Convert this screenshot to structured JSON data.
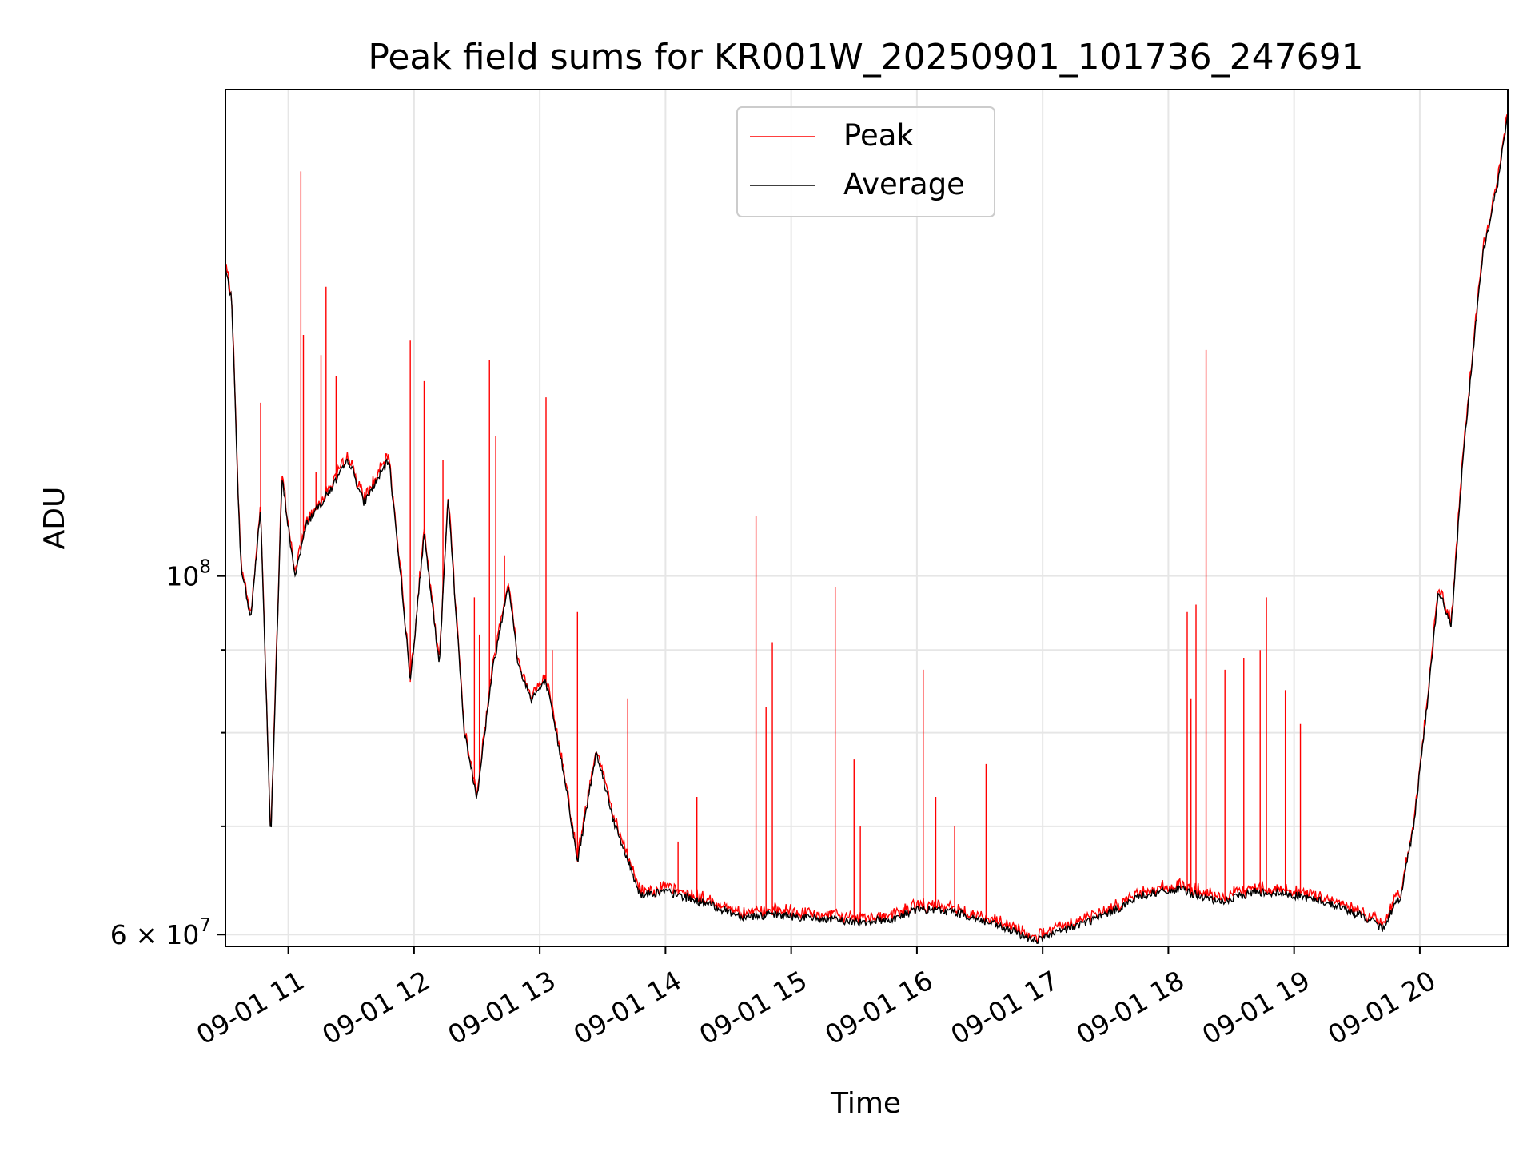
{
  "chart_data": {
    "type": "line",
    "title": "Peak field sums for KR001W_20250901_101736_247691",
    "xlabel": "Time",
    "ylabel": "ADU",
    "y_scale": "log",
    "x_range_hours": [
      10.5,
      20.7
    ],
    "ylim": [
      59000000,
      200000000
    ],
    "x_ticks": [
      {
        "value": 11,
        "label": "09-01 11"
      },
      {
        "value": 12,
        "label": "09-01 12"
      },
      {
        "value": 13,
        "label": "09-01 13"
      },
      {
        "value": 14,
        "label": "09-01 14"
      },
      {
        "value": 15,
        "label": "09-01 15"
      },
      {
        "value": 16,
        "label": "09-01 16"
      },
      {
        "value": 17,
        "label": "09-01 17"
      },
      {
        "value": 18,
        "label": "09-01 18"
      },
      {
        "value": 19,
        "label": "09-01 19"
      },
      {
        "value": 20,
        "label": "09-01 20"
      }
    ],
    "y_major_ticks": [
      {
        "value": 60000000,
        "label_base": "6 × 10",
        "label_exp": "7"
      },
      {
        "value": 100000000,
        "label_base": "10",
        "label_exp": "8"
      }
    ],
    "y_minor_ticks": [
      70000000,
      80000000,
      90000000
    ],
    "grid": true,
    "legend_position": "top-center",
    "series": [
      {
        "name": "Peak",
        "color": "#ff0000",
        "baseline": [
          [
            10.5,
            155000000
          ],
          [
            10.55,
            148000000
          ],
          [
            10.62,
            102000000
          ],
          [
            10.7,
            94000000
          ],
          [
            10.78,
            110000000
          ],
          [
            10.86,
            68500000
          ],
          [
            10.95,
            115000000
          ],
          [
            11.05,
            100000000
          ],
          [
            11.15,
            108000000
          ],
          [
            11.3,
            112000000
          ],
          [
            11.48,
            118000000
          ],
          [
            11.6,
            111000000
          ],
          [
            11.8,
            118000000
          ],
          [
            11.9,
            99000000
          ],
          [
            11.97,
            86000000
          ],
          [
            12.08,
            106000000
          ],
          [
            12.2,
            88000000
          ],
          [
            12.27,
            112000000
          ],
          [
            12.4,
            80000000
          ],
          [
            12.5,
            73000000
          ],
          [
            12.62,
            87000000
          ],
          [
            12.75,
            99000000
          ],
          [
            12.83,
            88000000
          ],
          [
            12.93,
            84000000
          ],
          [
            13.05,
            86000000
          ],
          [
            13.2,
            75000000
          ],
          [
            13.3,
            66500000
          ],
          [
            13.45,
            78000000
          ],
          [
            13.6,
            70000000
          ],
          [
            13.8,
            63500000
          ],
          [
            14.0,
            63800000
          ],
          [
            14.3,
            62800000
          ],
          [
            14.6,
            61600000
          ],
          [
            14.9,
            61700000
          ],
          [
            15.2,
            61400000
          ],
          [
            15.5,
            61100000
          ],
          [
            15.8,
            61300000
          ],
          [
            16.0,
            62200000
          ],
          [
            16.3,
            62000000
          ],
          [
            16.6,
            60900000
          ],
          [
            16.95,
            59500000
          ],
          [
            17.2,
            60500000
          ],
          [
            17.5,
            61700000
          ],
          [
            17.8,
            63500000
          ],
          [
            18.1,
            64000000
          ],
          [
            18.4,
            62800000
          ],
          [
            18.7,
            63800000
          ],
          [
            19.0,
            63500000
          ],
          [
            19.3,
            62700000
          ],
          [
            19.6,
            61300000
          ],
          [
            19.7,
            60500000
          ],
          [
            19.85,
            63500000
          ],
          [
            19.95,
            70000000
          ],
          [
            20.05,
            82000000
          ],
          [
            20.15,
            98000000
          ],
          [
            20.25,
            93000000
          ],
          [
            20.35,
            120000000
          ],
          [
            20.5,
            158000000
          ],
          [
            20.62,
            175000000
          ],
          [
            20.7,
            193000000
          ]
        ],
        "spikes": [
          [
            10.78,
            128000000
          ],
          [
            11.1,
            178000000
          ],
          [
            11.12,
            141000000
          ],
          [
            11.22,
            116000000
          ],
          [
            11.26,
            137000000
          ],
          [
            11.3,
            151000000
          ],
          [
            11.38,
            133000000
          ],
          [
            11.97,
            140000000
          ],
          [
            12.08,
            132000000
          ],
          [
            12.23,
            118000000
          ],
          [
            12.48,
            97000000
          ],
          [
            12.52,
            92000000
          ],
          [
            12.6,
            136000000
          ],
          [
            12.65,
            122000000
          ],
          [
            12.72,
            103000000
          ],
          [
            13.05,
            129000000
          ],
          [
            13.1,
            90000000
          ],
          [
            13.3,
            95000000
          ],
          [
            13.7,
            84000000
          ],
          [
            14.1,
            68500000
          ],
          [
            14.25,
            73000000
          ],
          [
            14.72,
            109000000
          ],
          [
            14.8,
            83000000
          ],
          [
            14.85,
            91000000
          ],
          [
            15.35,
            98500000
          ],
          [
            15.5,
            77000000
          ],
          [
            15.55,
            70000000
          ],
          [
            16.05,
            87500000
          ],
          [
            16.15,
            73000000
          ],
          [
            16.3,
            70000000
          ],
          [
            16.55,
            76500000
          ],
          [
            18.15,
            95000000
          ],
          [
            18.18,
            84000000
          ],
          [
            18.22,
            96000000
          ],
          [
            18.3,
            138000000
          ],
          [
            18.45,
            87500000
          ],
          [
            18.6,
            89000000
          ],
          [
            18.73,
            90000000
          ],
          [
            18.78,
            97000000
          ],
          [
            18.93,
            85000000
          ],
          [
            19.05,
            81000000
          ]
        ]
      },
      {
        "name": "Average",
        "color": "#000000",
        "baseline": [
          [
            10.5,
            155000000
          ],
          [
            10.55,
            148000000
          ],
          [
            10.62,
            102000000
          ],
          [
            10.7,
            94000000
          ],
          [
            10.78,
            110000000
          ],
          [
            10.86,
            68500000
          ],
          [
            10.95,
            115000000
          ],
          [
            11.05,
            100000000
          ],
          [
            11.15,
            108000000
          ],
          [
            11.3,
            112000000
          ],
          [
            11.48,
            118000000
          ],
          [
            11.6,
            111000000
          ],
          [
            11.8,
            118000000
          ],
          [
            11.9,
            99000000
          ],
          [
            11.97,
            86000000
          ],
          [
            12.08,
            106000000
          ],
          [
            12.2,
            88000000
          ],
          [
            12.27,
            112000000
          ],
          [
            12.4,
            80000000
          ],
          [
            12.5,
            73000000
          ],
          [
            12.62,
            87000000
          ],
          [
            12.75,
            99000000
          ],
          [
            12.83,
            88000000
          ],
          [
            12.93,
            84000000
          ],
          [
            13.05,
            86000000
          ],
          [
            13.2,
            75000000
          ],
          [
            13.3,
            66500000
          ],
          [
            13.45,
            78000000
          ],
          [
            13.6,
            70000000
          ],
          [
            13.8,
            63500000
          ],
          [
            14.0,
            63800000
          ],
          [
            14.3,
            62800000
          ],
          [
            14.6,
            61600000
          ],
          [
            14.9,
            61700000
          ],
          [
            15.2,
            61400000
          ],
          [
            15.5,
            61100000
          ],
          [
            15.8,
            61300000
          ],
          [
            16.0,
            62200000
          ],
          [
            16.3,
            62000000
          ],
          [
            16.6,
            60900000
          ],
          [
            16.95,
            59500000
          ],
          [
            17.2,
            60500000
          ],
          [
            17.5,
            61700000
          ],
          [
            17.8,
            63500000
          ],
          [
            18.1,
            64000000
          ],
          [
            18.4,
            62800000
          ],
          [
            18.7,
            63800000
          ],
          [
            19.0,
            63500000
          ],
          [
            19.3,
            62700000
          ],
          [
            19.6,
            61300000
          ],
          [
            19.7,
            60500000
          ],
          [
            19.85,
            63500000
          ],
          [
            19.95,
            70000000
          ],
          [
            20.05,
            82000000
          ],
          [
            20.15,
            98000000
          ],
          [
            20.25,
            93000000
          ],
          [
            20.35,
            120000000
          ],
          [
            20.5,
            158000000
          ],
          [
            20.62,
            175000000
          ],
          [
            20.7,
            193000000
          ]
        ]
      }
    ]
  }
}
